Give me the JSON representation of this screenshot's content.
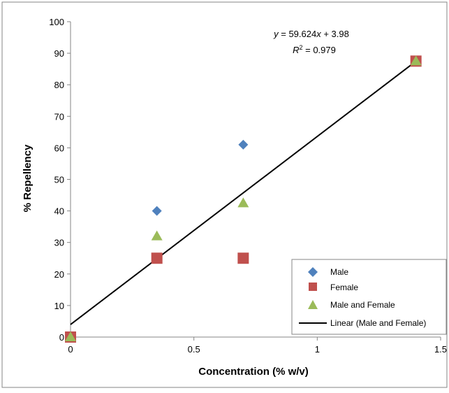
{
  "chart_data": {
    "type": "scatter",
    "xlabel": "Concentration (% w/v)",
    "ylabel": "% Repellency",
    "xlim": [
      0,
      1.5
    ],
    "ylim": [
      0,
      100
    ],
    "x_ticks": [
      0,
      0.5,
      1,
      1.5
    ],
    "x_tick_labels": [
      "0",
      "0.5",
      "1",
      "1.5"
    ],
    "y_ticks": [
      0,
      10,
      20,
      30,
      40,
      50,
      60,
      70,
      80,
      90,
      100
    ],
    "y_tick_labels": [
      "0",
      "10",
      "20",
      "30",
      "40",
      "50",
      "60",
      "70",
      "80",
      "90",
      "100"
    ],
    "grid": false,
    "legend_position": "bottom-right",
    "series": [
      {
        "name": "Male",
        "marker": "diamond",
        "color": "#4f81bd",
        "x": [
          0,
          0.35,
          0.7,
          1.4
        ],
        "y": [
          0,
          40,
          61,
          87.5
        ]
      },
      {
        "name": "Female",
        "marker": "square",
        "color": "#c0504d",
        "x": [
          0,
          0.35,
          0.7,
          1.4
        ],
        "y": [
          0,
          25,
          25,
          87.5
        ]
      },
      {
        "name": "Male and Female",
        "marker": "triangle",
        "color": "#9bbb59",
        "x": [
          0,
          0.35,
          0.7,
          1.4
        ],
        "y": [
          0,
          32,
          42.5,
          87.5
        ]
      }
    ],
    "trendline": {
      "name": "Linear (Male and Female)",
      "color": "#000000",
      "slope": 59.624,
      "intercept": 3.98,
      "x_range": [
        0,
        1.4
      ]
    },
    "equation": {
      "y_var": "y",
      "eq_rest": " = 59.624",
      "x_var": "x",
      "eq_tail": " + 3.98",
      "r_var": "R",
      "r_exp": "2",
      "r_rest": " = 0.979"
    }
  }
}
